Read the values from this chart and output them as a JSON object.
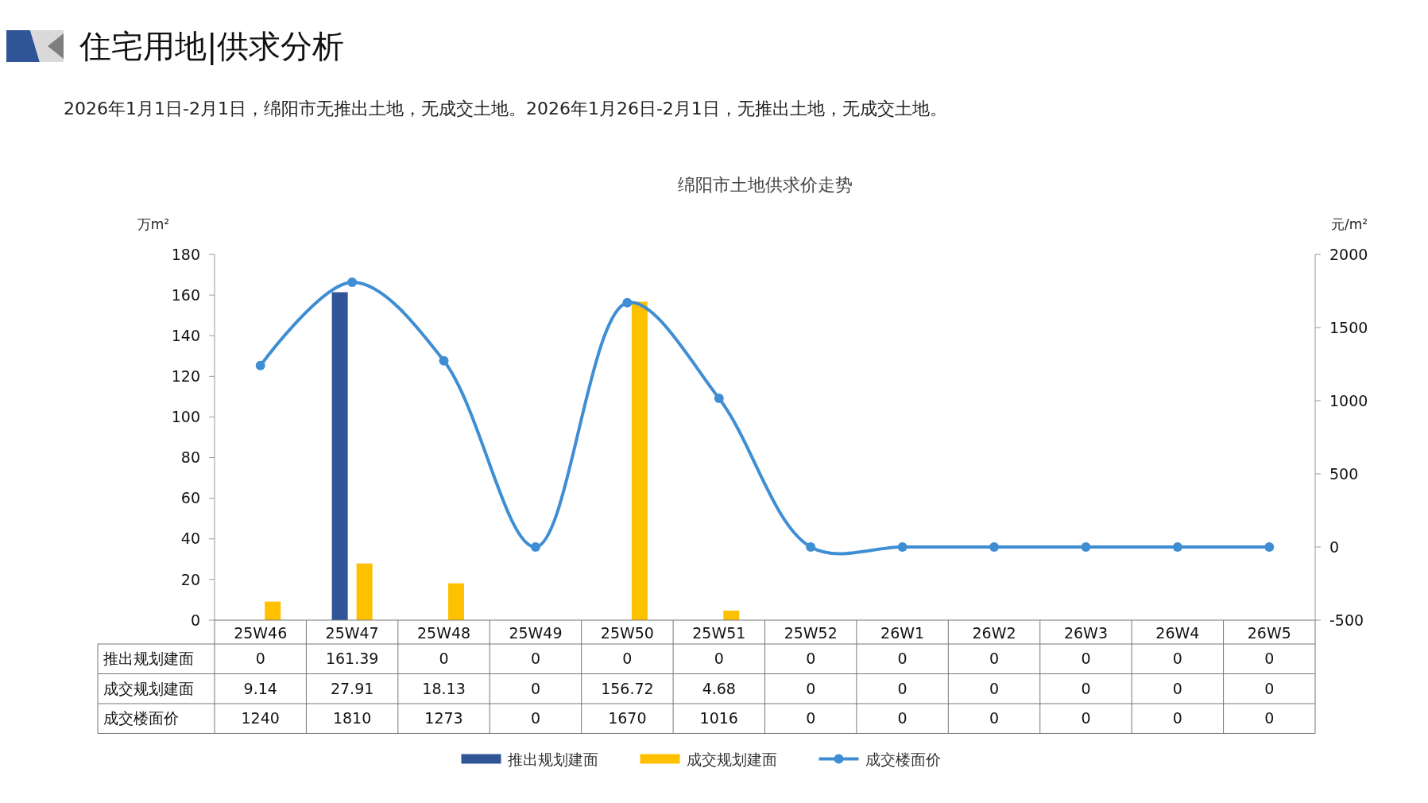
{
  "chart_data": {
    "type": "bar",
    "title": "住宅用地|供求分析",
    "subtitle": "2026年1月1日-2月1日，绵阳市无推出土地，无成交土地。2026年1月26日-2月1日，无推出土地，无成交土地。",
    "annotations": [
      "绵阳市土地供求价走势"
    ],
    "ylabel": "万m²",
    "y2label": "元/m²",
    "categories": [
      "25W46",
      "25W47",
      "25W48",
      "25W49",
      "25W50",
      "25W51",
      "25W52",
      "26W1",
      "26W2",
      "26W3",
      "26W4",
      "26W5"
    ],
    "series": [
      {
        "name": "推出规划建面",
        "color": "#2f5597",
        "values": [
          0,
          161.39,
          0,
          0,
          0,
          0,
          0,
          0,
          0,
          0,
          0,
          0
        ]
      },
      {
        "name": "成交规划建面",
        "color": "#ffc000",
        "values": [
          9.14,
          27.91,
          18.13,
          0,
          156.72,
          4.68,
          0,
          0,
          0,
          0,
          0,
          0
        ]
      },
      {
        "name": "成交楼面价",
        "type": "line",
        "axis": "y2",
        "color": "#3f8ed4",
        "values": [
          1240,
          1810,
          1273,
          0,
          1670,
          1016,
          0,
          0,
          0,
          0,
          0,
          0
        ]
      }
    ],
    "ylim": [
      0,
      180
    ],
    "yticks": [
      0,
      20,
      40,
      60,
      80,
      100,
      120,
      140,
      160,
      180
    ],
    "y2lim": [
      -500,
      2000
    ],
    "y2ticks": [
      -500,
      0,
      500,
      1000,
      1500,
      2000
    ],
    "data_labels": true,
    "legend": "bottom",
    "grid": false,
    "marker": "circle",
    "line_style": "solid"
  }
}
